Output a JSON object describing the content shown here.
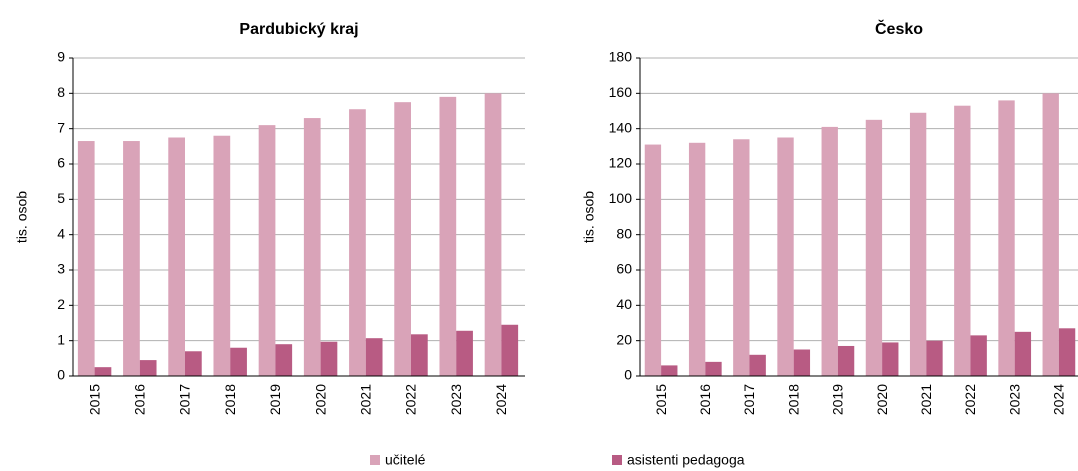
{
  "chart_data": [
    {
      "type": "bar",
      "title": "Pardubický kraj",
      "ylabel": "tis. osob",
      "categories": [
        "2015",
        "2016",
        "2017",
        "2018",
        "2019",
        "2020",
        "2021",
        "2022",
        "2023",
        "2024"
      ],
      "series": [
        {
          "name": "učitelé",
          "color": "#d9a3b8",
          "values": [
            6.65,
            6.65,
            6.75,
            6.8,
            7.1,
            7.3,
            7.55,
            7.75,
            7.9,
            8.0
          ]
        },
        {
          "name": "asistenti pedagoga",
          "color": "#b85b83",
          "values": [
            0.25,
            0.45,
            0.7,
            0.8,
            0.9,
            0.97,
            1.07,
            1.18,
            1.28,
            1.45
          ]
        }
      ],
      "ylim": [
        0,
        9
      ],
      "yticks": [
        0,
        1,
        2,
        3,
        4,
        5,
        6,
        7,
        8,
        9
      ],
      "grid": true
    },
    {
      "type": "bar",
      "title": "Česko",
      "ylabel": "tis. osob",
      "categories": [
        "2015",
        "2016",
        "2017",
        "2018",
        "2019",
        "2020",
        "2021",
        "2022",
        "2023",
        "2024"
      ],
      "series": [
        {
          "name": "učitelé",
          "color": "#d9a3b8",
          "values": [
            131,
            132,
            134,
            135,
            141,
            145,
            149,
            153,
            156,
            160
          ]
        },
        {
          "name": "asistenti pedagoga",
          "color": "#b85b83",
          "values": [
            6,
            8,
            12,
            15,
            17,
            19,
            20,
            23,
            25,
            27
          ]
        }
      ],
      "ylim": [
        0,
        180
      ],
      "yticks": [
        0,
        20,
        40,
        60,
        80,
        100,
        120,
        140,
        160,
        180
      ],
      "grid": true
    }
  ]
}
